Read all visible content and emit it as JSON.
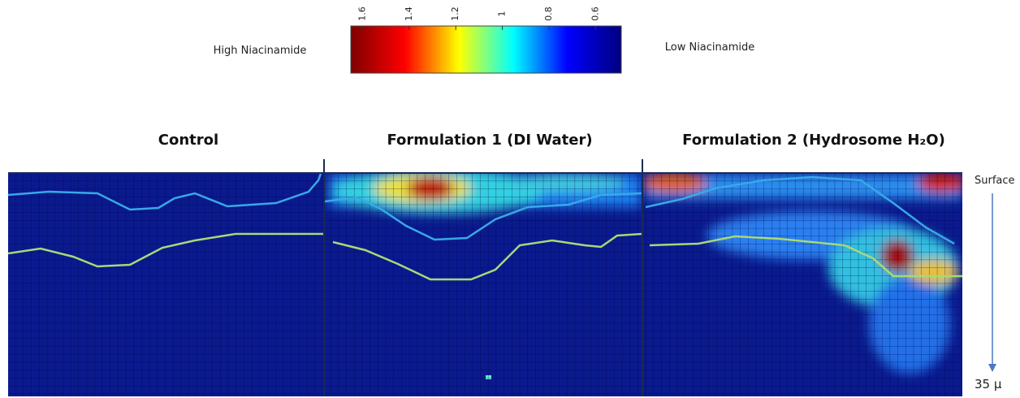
{
  "colorbar": {
    "ticks": [
      1.6,
      1.4,
      1.2,
      1,
      0.8,
      0.6
    ],
    "range": [
      1.65,
      0.49
    ],
    "colormap": [
      "#7f0000",
      "#ff0000",
      "#ffff00",
      "#00ffff",
      "#0000ff",
      "#00007f"
    ],
    "high_label": "High Niacinamide",
    "low_label": "Low Niacinamide"
  },
  "panels": [
    {
      "title": "Control"
    },
    {
      "title": "Formulation 1 (DI Water)"
    },
    {
      "title": "Formulation 2 (Hydrosome H₂O)"
    }
  ],
  "depth_axis": {
    "top_label": "Surface",
    "bottom_label": "35 µ"
  }
}
